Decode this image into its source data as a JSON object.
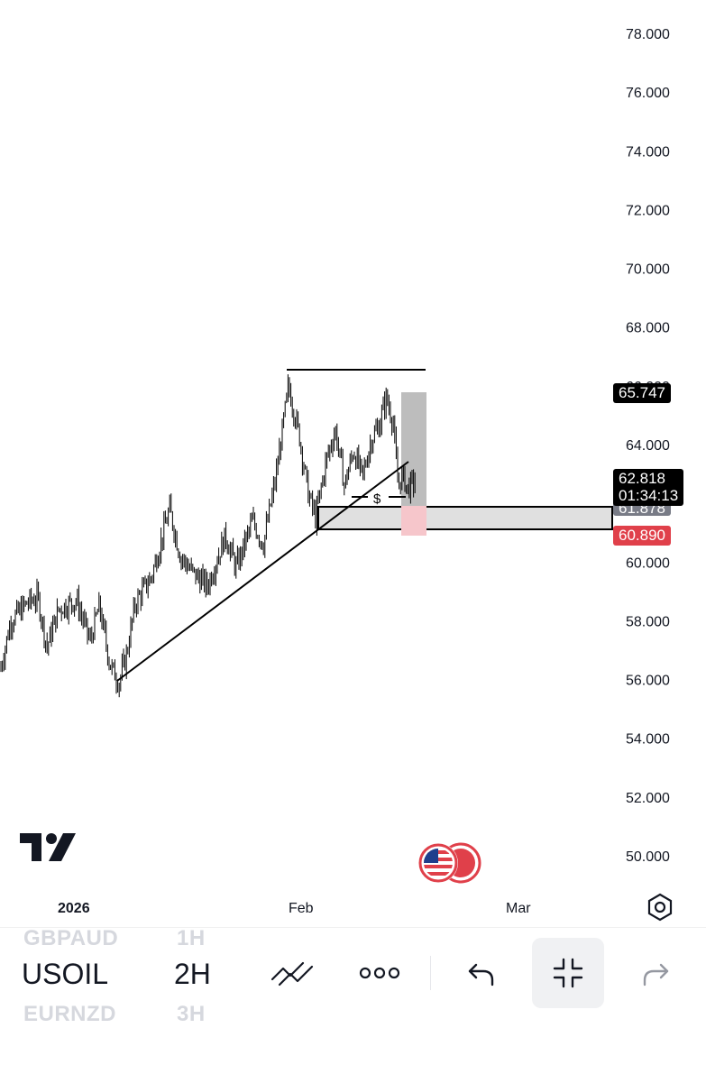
{
  "chart": {
    "symbol": "USOIL",
    "interval": "2H",
    "y_axis_labels": [
      "78.000",
      "76.000",
      "74.000",
      "72.000",
      "70.000",
      "68.000",
      "66.000",
      "64.000",
      "62.000",
      "60.000",
      "58.000",
      "56.000",
      "54.000",
      "52.000",
      "50.000"
    ],
    "x_axis_labels": {
      "year": "2026",
      "month1": "Feb",
      "month2": "Mar"
    },
    "price_tags": {
      "high": "65.747",
      "last_price": "62.818",
      "countdown": "01:34:13",
      "grey": "61.878",
      "red": "60.890"
    },
    "drawing_label": "$",
    "colors": {
      "red_tag": "#e0404a",
      "grey_tag": "#787b86",
      "candle": "#000000",
      "zone": "#e0e0e0"
    }
  },
  "watchlist": {
    "prev_symbol": "GBPAUD",
    "prev_interval": "1H",
    "next_symbol": "EURNZD",
    "next_interval": "3H"
  },
  "icons": [
    "tradingview-logo-icon",
    "us-flag-icon",
    "settings-hexagon-icon",
    "drawing-tools-icon",
    "more-icon",
    "undo-icon",
    "exit-fullscreen-icon",
    "redo-icon"
  ]
}
